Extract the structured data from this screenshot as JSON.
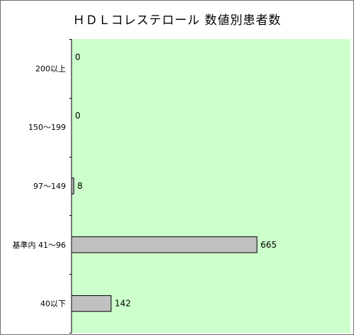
{
  "chart_data": {
    "type": "bar",
    "orientation": "horizontal",
    "title": "ＨＤＬコレステロール 数値別患者数",
    "xlabel": "",
    "ylabel": "",
    "categories": [
      "200以上",
      "150～199",
      "97～149",
      "基準内 41～96",
      "40以下"
    ],
    "values": [
      0,
      0,
      8,
      665,
      142
    ],
    "data_labels": [
      "0",
      "0",
      "8",
      "665",
      "142"
    ],
    "xlim": [
      0,
      1000
    ],
    "grid": false,
    "legend": "none",
    "colors": {
      "plot_background": "#ccffcc",
      "bar_fill": "#c0c0c0",
      "bar_stroke": "#000000",
      "axis": "#000000"
    }
  }
}
